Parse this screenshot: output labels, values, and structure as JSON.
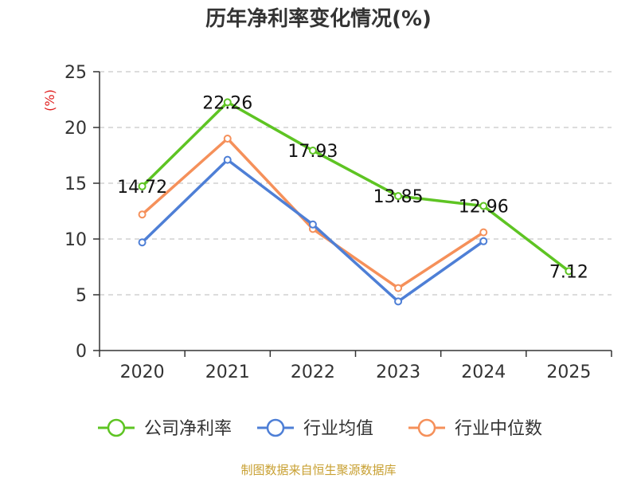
{
  "chart_data": {
    "type": "line",
    "title": "历年净利率变化情况(%)",
    "ylabel": "(%)",
    "categories": [
      "2020",
      "2021",
      "2022",
      "2023",
      "2024",
      "2025"
    ],
    "ylim": [
      0,
      25
    ],
    "yticks": [
      0,
      5,
      10,
      15,
      20,
      25
    ],
    "grid": true,
    "legend_position": "bottom",
    "series": [
      {
        "name": "公司净利率",
        "color": "#5ec423",
        "values": [
          14.72,
          22.26,
          17.93,
          13.85,
          12.96,
          7.12
        ],
        "labels": [
          "14.72",
          "22.26",
          "17.93",
          "13.85",
          "12.96",
          "7.12"
        ]
      },
      {
        "name": "行业均值",
        "color": "#4e7fd6",
        "values": [
          9.7,
          17.1,
          11.3,
          4.4,
          9.8,
          null
        ]
      },
      {
        "name": "行业中位数",
        "color": "#f5905a",
        "values": [
          12.2,
          19.0,
          10.9,
          5.6,
          10.6,
          null
        ]
      }
    ],
    "source": "制图数据来自恒生聚源数据库"
  }
}
